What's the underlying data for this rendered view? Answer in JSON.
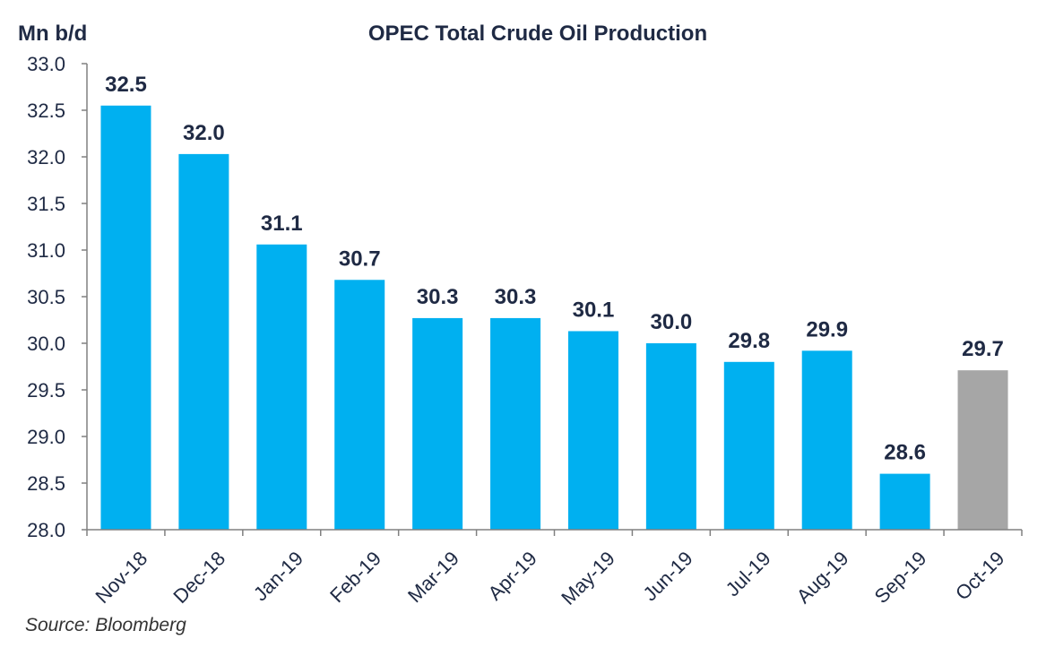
{
  "chart_data": {
    "type": "bar",
    "title": "OPEC Total Crude Oil Production",
    "ylabel": "Mn b/d",
    "xlabel": "",
    "ylim": [
      28.0,
      33.0
    ],
    "yticks": [
      "33.0",
      "32.5",
      "32.0",
      "31.5",
      "31.0",
      "30.5",
      "30.0",
      "29.5",
      "29.0",
      "28.5",
      "28.0"
    ],
    "categories": [
      "Nov-18",
      "Dec-18",
      "Jan-19",
      "Feb-19",
      "Mar-19",
      "Apr-19",
      "May-19",
      "Jun-19",
      "Jul-19",
      "Aug-19",
      "Sep-19",
      "Oct-19"
    ],
    "values": [
      32.55,
      32.03,
      31.06,
      30.68,
      30.27,
      30.27,
      30.13,
      30.0,
      29.8,
      29.92,
      28.6,
      29.71
    ],
    "data_labels": [
      "32.5",
      "32.0",
      "31.1",
      "30.7",
      "30.3",
      "30.3",
      "30.1",
      "30.0",
      "29.8",
      "29.9",
      "28.6",
      "29.7"
    ],
    "bar_colors": [
      "#00b0f0",
      "#00b0f0",
      "#00b0f0",
      "#00b0f0",
      "#00b0f0",
      "#00b0f0",
      "#00b0f0",
      "#00b0f0",
      "#00b0f0",
      "#00b0f0",
      "#00b0f0",
      "#a6a6a6"
    ],
    "grid": false,
    "source": "Source: Bloomberg"
  }
}
